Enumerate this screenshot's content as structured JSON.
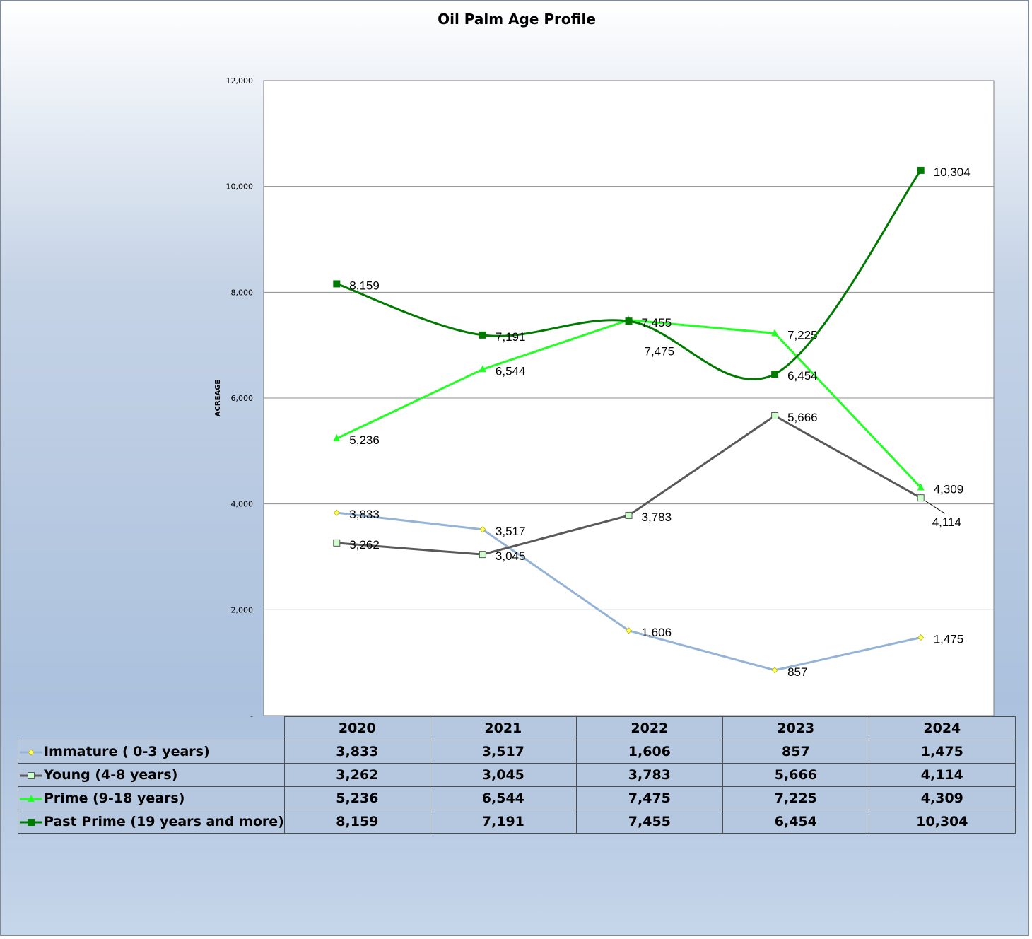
{
  "chart_data": {
    "type": "line",
    "title": "Oil Palm Age Profile",
    "ylabel": "ACREAGE",
    "xlabel": "",
    "ylim": [
      0,
      12000
    ],
    "yticks": [
      "-",
      "2,000",
      "4,000",
      "6,000",
      "8,000",
      "10,000",
      "12,000"
    ],
    "categories": [
      "2020",
      "2021",
      "2022",
      "2023",
      "2024"
    ],
    "grid": true,
    "legend": "data-table",
    "series": [
      {
        "name": "Immature ( 0-3 years)",
        "values": [
          3833,
          3517,
          1606,
          857,
          1475
        ],
        "labels": [
          "3,833",
          "3,517",
          "1,606",
          "857",
          "1,475"
        ],
        "color": "#95b3d7",
        "marker": "diamond",
        "marker_color": "#ffff66",
        "smooth": false
      },
      {
        "name": "Young (4-8 years)",
        "values": [
          3262,
          3045,
          3783,
          5666,
          4114
        ],
        "labels": [
          "3,262",
          "3,045",
          "3,783",
          "5,666",
          "4,114"
        ],
        "color": "#595959",
        "marker": "square-open",
        "marker_color": "#ccffcc",
        "smooth": false
      },
      {
        "name": "Prime (9-18 years)",
        "values": [
          5236,
          6544,
          7475,
          7225,
          4309
        ],
        "labels": [
          "5,236",
          "6,544",
          "7,475",
          "7,225",
          "4,309"
        ],
        "color": "#22ff22",
        "marker": "triangle",
        "marker_color": "#22ff22",
        "smooth": false
      },
      {
        "name": "Past Prime (19 years and more)",
        "values": [
          8159,
          7191,
          7455,
          6454,
          10304
        ],
        "labels": [
          "8,159",
          "7,191",
          "7,455",
          "6,454",
          "10,304"
        ],
        "color": "#007a00",
        "marker": "square",
        "marker_color": "#007a00",
        "smooth": true
      }
    ]
  }
}
